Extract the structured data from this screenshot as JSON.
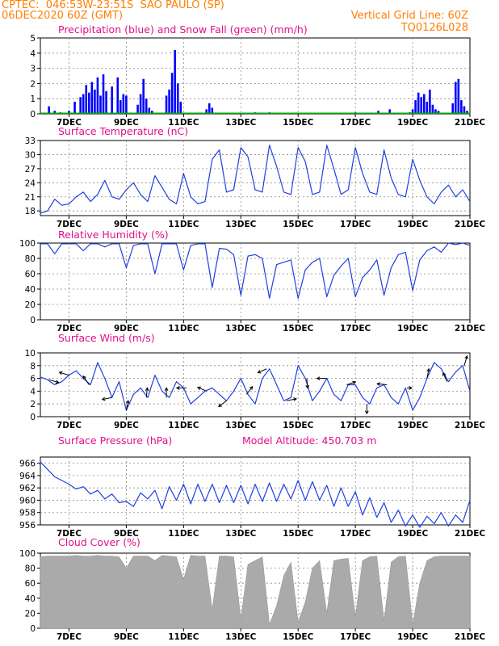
{
  "header": {
    "station": "CPTEC:  046:53W-23:51S  SAO PAULO (SP)",
    "run": "06DEC2020 60Z (GMT)",
    "grid_note": "Vertical Grid Line: 60Z",
    "code": "TQ0126L028"
  },
  "colors": {
    "header": "#ff7f00",
    "panel_title": "#e0108a",
    "rain": "#0000ff",
    "snow": "#00aa00",
    "line": "#2040e0",
    "wind_arrow": "#000000",
    "cloud": "#aaaaaa"
  },
  "x_axis": {
    "ticks": [
      {
        "day": 7,
        "label": "7DEC"
      },
      {
        "day": 9,
        "label": "9DEC"
      },
      {
        "day": 11,
        "label": "11DEC"
      },
      {
        "day": 13,
        "label": "13DEC"
      },
      {
        "day": 15,
        "label": "15DEC"
      },
      {
        "day": 17,
        "label": "17DEC"
      },
      {
        "day": 19,
        "label": "19DEC"
      },
      {
        "day": 21,
        "label": "21DEC"
      }
    ]
  },
  "chart_data": [
    {
      "type": "bar",
      "title": "Precipitation (blue) and Snow Fall (green) (mm/h)",
      "ylim": [
        0,
        5
      ],
      "yticks": [
        0,
        1,
        2,
        3,
        4,
        5
      ],
      "x_day": [
        6.3,
        6.5,
        6.7,
        7.0,
        7.2,
        7.4,
        7.5,
        7.6,
        7.7,
        7.8,
        7.9,
        8.0,
        8.1,
        8.2,
        8.3,
        8.5,
        8.7,
        8.8,
        8.9,
        9.0,
        9.4,
        9.5,
        9.6,
        9.7,
        9.8,
        9.9,
        10.4,
        10.5,
        10.6,
        10.7,
        10.8,
        10.9,
        11.8,
        11.9,
        12.0,
        13.5,
        14.0,
        17.0,
        17.8,
        18.2,
        18.9,
        19.0,
        19.1,
        19.2,
        19.3,
        19.4,
        19.5,
        19.6,
        19.7,
        19.8,
        19.9,
        20.4,
        20.5,
        20.6,
        20.7,
        20.8,
        20.9
      ],
      "values": [
        0.5,
        0.2,
        0.1,
        0.2,
        0.8,
        1.1,
        1.3,
        1.9,
        1.4,
        2.1,
        1.6,
        2.4,
        1.2,
        2.6,
        1.5,
        1.8,
        2.4,
        0.9,
        1.3,
        1.2,
        0.6,
        1.3,
        2.3,
        1.0,
        0.4,
        0.2,
        1.2,
        1.6,
        2.7,
        4.2,
        2.0,
        0.8,
        0.3,
        0.7,
        0.4,
        0.1,
        0.1,
        0.1,
        0.2,
        0.3,
        0.1,
        0.3,
        0.9,
        1.4,
        1.1,
        1.3,
        0.8,
        1.6,
        0.6,
        0.3,
        0.2,
        0.7,
        2.1,
        2.3,
        0.9,
        0.5,
        0.2
      ],
      "snow_values": "none",
      "series": [
        {
          "name": "Precipitation"
        },
        {
          "name": "Snow Fall"
        }
      ]
    },
    {
      "type": "line",
      "title": "Surface Temperature (nC)",
      "ylim": [
        17,
        33
      ],
      "yticks": [
        18,
        21,
        24,
        27,
        30,
        33
      ],
      "x_day": [
        6.0,
        6.25,
        6.5,
        6.75,
        7.0,
        7.25,
        7.5,
        7.75,
        8.0,
        8.25,
        8.5,
        8.75,
        9.0,
        9.25,
        9.5,
        9.75,
        10.0,
        10.25,
        10.5,
        10.75,
        11.0,
        11.25,
        11.5,
        11.75,
        12.0,
        12.25,
        12.5,
        12.75,
        13.0,
        13.25,
        13.5,
        13.75,
        14.0,
        14.25,
        14.5,
        14.75,
        15.0,
        15.25,
        15.5,
        15.75,
        16.0,
        16.25,
        16.5,
        16.75,
        17.0,
        17.25,
        17.5,
        17.75,
        18.0,
        18.25,
        18.5,
        18.75,
        19.0,
        19.25,
        19.5,
        19.75,
        20.0,
        20.25,
        20.5,
        20.75,
        21.0
      ],
      "values": [
        17.5,
        18.0,
        20.5,
        19.2,
        19.5,
        21.0,
        22.0,
        20.0,
        21.5,
        24.5,
        21.0,
        20.5,
        22.5,
        24.0,
        21.5,
        20.0,
        25.5,
        23.0,
        20.5,
        19.5,
        26.0,
        21.0,
        19.5,
        20.0,
        29.0,
        31.0,
        22.0,
        22.5,
        31.5,
        29.5,
        22.5,
        22.0,
        32.0,
        27.5,
        22.0,
        21.5,
        31.5,
        28.5,
        21.5,
        22.0,
        32.0,
        27.0,
        21.5,
        22.5,
        31.5,
        26.0,
        22.0,
        21.5,
        31.0,
        25.0,
        21.5,
        21.0,
        29.0,
        24.5,
        21.0,
        19.5,
        22.0,
        23.5,
        21.0,
        22.5,
        20.0
      ],
      "series": [
        {
          "name": "Surface Temperature"
        }
      ]
    },
    {
      "type": "line",
      "title": "Relative Humidity (%)",
      "ylim": [
        0,
        100
      ],
      "yticks": [
        0,
        20,
        40,
        60,
        80,
        100
      ],
      "x_day": [
        6.0,
        6.25,
        6.5,
        6.75,
        7.0,
        7.25,
        7.5,
        7.75,
        8.0,
        8.25,
        8.5,
        8.75,
        9.0,
        9.25,
        9.5,
        9.75,
        10.0,
        10.25,
        10.5,
        10.75,
        11.0,
        11.25,
        11.5,
        11.75,
        12.0,
        12.25,
        12.5,
        12.75,
        13.0,
        13.25,
        13.5,
        13.75,
        14.0,
        14.25,
        14.5,
        14.75,
        15.0,
        15.25,
        15.5,
        15.75,
        16.0,
        16.25,
        16.5,
        16.75,
        17.0,
        17.25,
        17.5,
        17.75,
        18.0,
        18.25,
        18.5,
        18.75,
        19.0,
        19.25,
        19.5,
        19.75,
        20.0,
        20.25,
        20.5,
        20.75,
        21.0
      ],
      "values": [
        99,
        99,
        86,
        99,
        99,
        99,
        90,
        99,
        99,
        95,
        99,
        99,
        68,
        97,
        99,
        99,
        60,
        99,
        99,
        99,
        65,
        97,
        99,
        99,
        42,
        93,
        92,
        85,
        32,
        83,
        85,
        80,
        28,
        72,
        75,
        78,
        28,
        65,
        75,
        80,
        30,
        58,
        70,
        80,
        30,
        55,
        65,
        78,
        32,
        68,
        85,
        88,
        38,
        78,
        90,
        95,
        88,
        100,
        98,
        100,
        97
      ],
      "series": [
        {
          "name": "Relative Humidity"
        }
      ]
    },
    {
      "type": "line",
      "title": "Surface Wind (m/s)",
      "ylim": [
        0,
        10
      ],
      "yticks": [
        0,
        2,
        4,
        6,
        8,
        10
      ],
      "x_day": [
        6.0,
        6.25,
        6.5,
        6.75,
        7.0,
        7.25,
        7.5,
        7.75,
        8.0,
        8.25,
        8.5,
        8.75,
        9.0,
        9.25,
        9.5,
        9.75,
        10.0,
        10.25,
        10.5,
        10.75,
        11.0,
        11.25,
        11.5,
        11.75,
        12.0,
        12.25,
        12.5,
        12.75,
        13.0,
        13.25,
        13.5,
        13.75,
        14.0,
        14.25,
        14.5,
        14.75,
        15.0,
        15.25,
        15.5,
        15.75,
        16.0,
        16.25,
        16.5,
        16.75,
        17.0,
        17.25,
        17.5,
        17.75,
        18.0,
        18.25,
        18.5,
        18.75,
        19.0,
        19.25,
        19.5,
        19.75,
        20.0,
        20.25,
        20.5,
        20.75,
        21.0
      ],
      "values": [
        6.2,
        5.8,
        5.0,
        5.5,
        6.5,
        7.2,
        6.0,
        5.0,
        8.5,
        6.0,
        3.0,
        5.5,
        1.0,
        3.5,
        4.5,
        3.0,
        6.5,
        4.0,
        3.0,
        5.5,
        4.5,
        2.0,
        3.0,
        4.0,
        4.5,
        3.5,
        2.5,
        4.0,
        6.0,
        3.5,
        2.0,
        6.0,
        7.5,
        5.0,
        2.5,
        3.0,
        8.0,
        6.0,
        2.5,
        4.0,
        6.0,
        3.5,
        2.5,
        5.0,
        5.0,
        3.0,
        2.0,
        4.5,
        5.0,
        3.0,
        2.0,
        4.5,
        1.0,
        3.0,
        6.0,
        8.5,
        7.5,
        5.5,
        7.0,
        8.0,
        4.0
      ],
      "vectors": [
        {
          "day": 6.3,
          "u": 1.0,
          "v": -0.3
        },
        {
          "day": 7.0,
          "u": -1.0,
          "v": 0.3
        },
        {
          "day": 7.7,
          "u": -0.6,
          "v": 0.9
        },
        {
          "day": 8.5,
          "u": -1.0,
          "v": -0.2
        },
        {
          "day": 9.0,
          "u": 0.2,
          "v": 1.0
        },
        {
          "day": 9.7,
          "u": 0.1,
          "v": 1.0
        },
        {
          "day": 10.4,
          "u": 0.0,
          "v": 1.0
        },
        {
          "day": 11.1,
          "u": -1.0,
          "v": 0.0
        },
        {
          "day": 11.8,
          "u": -0.9,
          "v": 0.4
        },
        {
          "day": 12.5,
          "u": -0.8,
          "v": -0.6
        },
        {
          "day": 13.2,
          "u": 0.6,
          "v": 0.8
        },
        {
          "day": 13.9,
          "u": -0.9,
          "v": -0.4
        },
        {
          "day": 14.6,
          "u": 1.0,
          "v": 0.2
        },
        {
          "day": 15.3,
          "u": 0.1,
          "v": -1.0
        },
        {
          "day": 16.0,
          "u": -1.0,
          "v": 0.0
        },
        {
          "day": 16.7,
          "u": 0.9,
          "v": 0.3
        },
        {
          "day": 17.4,
          "u": 0.0,
          "v": -1.0
        },
        {
          "day": 18.1,
          "u": -1.0,
          "v": 0.1
        },
        {
          "day": 18.8,
          "u": 0.5,
          "v": 0.0
        },
        {
          "day": 19.5,
          "u": 0.2,
          "v": 1.0
        },
        {
          "day": 20.2,
          "u": -0.4,
          "v": 0.9
        },
        {
          "day": 20.8,
          "u": 0.3,
          "v": 1.0
        }
      ],
      "series": [
        {
          "name": "Surface Wind"
        }
      ]
    },
    {
      "type": "line",
      "title": "Surface Pressure (hPa)",
      "annotation": "Model Altitude: 450.703 m",
      "ylim": [
        956,
        967
      ],
      "yticks": [
        956,
        958,
        960,
        962,
        964,
        966
      ],
      "x_day": [
        6.0,
        6.25,
        6.5,
        6.75,
        7.0,
        7.25,
        7.5,
        7.75,
        8.0,
        8.25,
        8.5,
        8.75,
        9.0,
        9.25,
        9.5,
        9.75,
        10.0,
        10.25,
        10.5,
        10.75,
        11.0,
        11.25,
        11.5,
        11.75,
        12.0,
        12.25,
        12.5,
        12.75,
        13.0,
        13.25,
        13.5,
        13.75,
        14.0,
        14.25,
        14.5,
        14.75,
        15.0,
        15.25,
        15.5,
        15.75,
        16.0,
        16.25,
        16.5,
        16.75,
        17.0,
        17.25,
        17.5,
        17.75,
        18.0,
        18.25,
        18.5,
        18.75,
        19.0,
        19.25,
        19.5,
        19.75,
        20.0,
        20.25,
        20.5,
        20.75,
        21.0
      ],
      "values": [
        966.2,
        965.0,
        963.8,
        963.2,
        962.6,
        961.8,
        962.2,
        961.0,
        961.6,
        960.2,
        961.0,
        959.6,
        959.8,
        959.0,
        961.2,
        960.2,
        961.6,
        958.6,
        962.2,
        960.0,
        962.6,
        959.4,
        962.6,
        959.8,
        962.6,
        959.6,
        962.4,
        959.6,
        962.4,
        959.4,
        962.6,
        959.8,
        962.8,
        959.8,
        962.6,
        960.2,
        963.2,
        960.0,
        963.0,
        960.0,
        962.4,
        959.0,
        962.0,
        959.0,
        961.4,
        957.6,
        960.4,
        957.2,
        959.6,
        956.4,
        958.4,
        955.8,
        957.6,
        955.6,
        957.4,
        956.2,
        958.0,
        955.8,
        957.6,
        956.4,
        960.0
      ],
      "series": [
        {
          "name": "Surface Pressure"
        }
      ]
    },
    {
      "type": "area",
      "title": "Cloud Cover (%)",
      "ylim": [
        0,
        100
      ],
      "yticks": [
        0,
        20,
        40,
        60,
        80,
        100
      ],
      "x_day": [
        6.0,
        6.25,
        6.5,
        6.75,
        7.0,
        7.25,
        7.5,
        7.75,
        8.0,
        8.25,
        8.5,
        8.75,
        9.0,
        9.25,
        9.5,
        9.75,
        10.0,
        10.25,
        10.5,
        10.75,
        11.0,
        11.25,
        11.5,
        11.75,
        12.0,
        12.25,
        12.5,
        12.75,
        13.0,
        13.25,
        13.5,
        13.75,
        14.0,
        14.25,
        14.5,
        14.75,
        15.0,
        15.25,
        15.5,
        15.75,
        16.0,
        16.25,
        16.5,
        16.75,
        17.0,
        17.25,
        17.5,
        17.75,
        18.0,
        18.25,
        18.5,
        18.75,
        19.0,
        19.25,
        19.5,
        19.75,
        20.0,
        20.25,
        20.5,
        20.75,
        21.0
      ],
      "values": [
        95,
        96,
        96,
        96,
        96,
        97,
        96,
        96,
        97,
        96,
        96,
        95,
        80,
        96,
        96,
        96,
        90,
        97,
        96,
        95,
        65,
        97,
        96,
        96,
        25,
        96,
        96,
        95,
        12,
        85,
        90,
        95,
        5,
        30,
        70,
        88,
        8,
        35,
        80,
        90,
        20,
        90,
        92,
        93,
        15,
        90,
        95,
        96,
        10,
        88,
        95,
        96,
        5,
        60,
        90,
        95,
        96,
        96,
        96,
        96,
        96
      ],
      "series": [
        {
          "name": "Cloud Cover"
        }
      ]
    }
  ]
}
